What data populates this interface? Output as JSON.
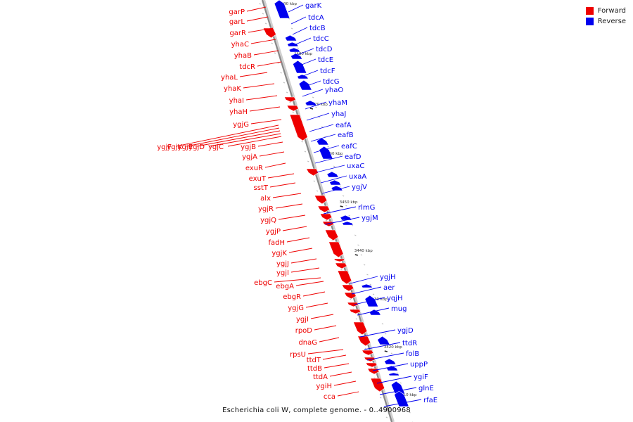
{
  "caption": "Escherichia coli W, complete genome. - 0..4900968",
  "legend": [
    {
      "label": "Forward",
      "color": "#ee0000"
    },
    {
      "label": "Reverse",
      "color": "#0000ee"
    }
  ],
  "colors": {
    "axis": "#888888",
    "forward": "#ee0000",
    "reverse": "#0000ee"
  },
  "ruler": [
    "3490 kbp",
    "3480 kbp",
    "3470 kbp",
    "3460 kbp",
    "3450 kbp",
    "3440 kbp",
    "3430 kbp",
    "3420 kbp",
    "3410 kbp"
  ],
  "forward_genes": [
    "garP",
    "garL",
    "garR",
    "yhaC",
    "yhaB",
    "tdcR",
    "yhaL",
    "yhaK",
    "yhaI",
    "yhaH",
    "ygjG",
    "ygjF",
    "ygjK",
    "ygjE",
    "ygjD",
    "ygjC",
    "ygjB",
    "ygjA",
    "exuR",
    "exuT",
    "sstT",
    "alx",
    "ygjR",
    "ygjQ",
    "ygjP",
    "fadH",
    "ygjK",
    "ygjJ",
    "ygjI",
    "ebgC",
    "ebgA",
    "ebgR",
    "ygjG",
    "ygjI",
    "rpoD",
    "dnaG",
    "rpsU",
    "ttdT",
    "ttdB",
    "ttdA",
    "ygiH",
    "cca"
  ],
  "reverse_genes": [
    "garK",
    "tdcA",
    "tdcB",
    "tdcC",
    "tdcD",
    "tdcE",
    "tdcF",
    "tdcG",
    "yhaO",
    "yhaM",
    "yhaJ",
    "eafA",
    "eafB",
    "eafC",
    "eafD",
    "uxaC",
    "uxaA",
    "ygjV",
    "rlmG",
    "ygjM",
    "ygjH",
    "aer",
    "yqjH",
    "mug",
    "ygjD",
    "ttdR",
    "folB",
    "uppP",
    "ygiF",
    "glnE",
    "rfaE"
  ]
}
